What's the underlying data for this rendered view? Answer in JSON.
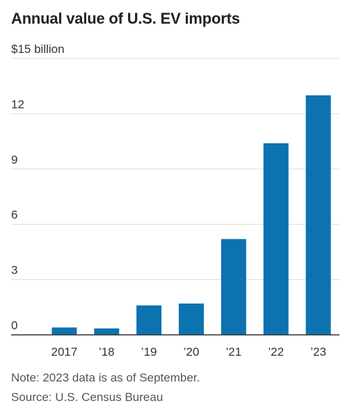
{
  "chart_data": {
    "type": "bar",
    "title": "Annual value of U.S. EV imports",
    "ylabel": "$15 billion",
    "categories": [
      "2017",
      "’18",
      "’19",
      "’20",
      "’21",
      "’22",
      "’23"
    ],
    "values": [
      0.4,
      0.35,
      1.6,
      1.7,
      5.2,
      10.4,
      13.0
    ],
    "ylim": [
      0,
      15
    ],
    "yticks": [
      0,
      3,
      6,
      9,
      12,
      15
    ],
    "ytick_labels": [
      "0",
      "3",
      "6",
      "9",
      "12",
      "$15 billion"
    ],
    "grid": true,
    "bar_color": "#0c73b0",
    "grid_color": "#dcdcdc",
    "axis_color": "#333333"
  },
  "notes": {
    "note": "Note: 2023 data is as of September.",
    "source": "Source: U.S. Census Bureau"
  }
}
